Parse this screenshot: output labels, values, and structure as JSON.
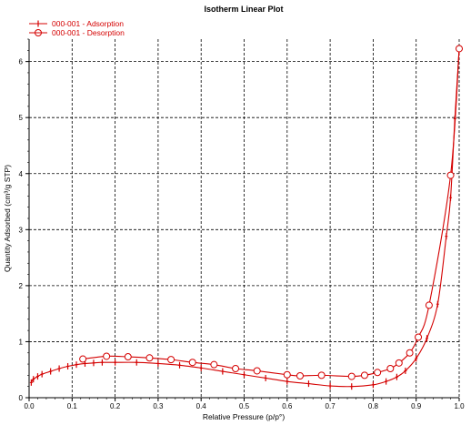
{
  "chart_data": {
    "type": "line",
    "title": "Isotherm Linear Plot",
    "xlabel": "Relative Pressure (p/p°)",
    "ylabel": "Quantity Adsorbed (cm³/g STP)",
    "xlim": [
      0,
      1.0
    ],
    "ylim": [
      0,
      6.4
    ],
    "x_ticks": [
      0.0,
      0.1,
      0.2,
      0.3,
      0.4,
      0.5,
      0.6,
      0.7,
      0.8,
      0.9,
      1.0
    ],
    "x_tick_labels": [
      "0.0",
      "0.1",
      "0.2",
      "0.3",
      "0.4",
      "0.5",
      "0.6",
      "0.7",
      "0.8",
      "0.9",
      "1.0"
    ],
    "y_ticks": [
      0,
      1,
      2,
      3,
      4,
      5,
      6
    ],
    "y_tick_labels": [
      "0",
      "1",
      "2",
      "3",
      "4",
      "5",
      "6"
    ],
    "grid": true,
    "legend_position": "top-left",
    "color": "#d40000",
    "series": [
      {
        "name": "000-001 - Adsorption",
        "marker": "plus",
        "x": [
          0.005,
          0.01,
          0.02,
          0.03,
          0.05,
          0.07,
          0.09,
          0.11,
          0.13,
          0.15,
          0.17,
          0.2,
          0.25,
          0.3,
          0.35,
          0.4,
          0.45,
          0.5,
          0.55,
          0.6,
          0.65,
          0.7,
          0.75,
          0.8,
          0.83,
          0.855,
          0.875,
          0.9,
          0.925,
          0.95,
          0.97,
          0.98,
          0.99,
          1.0
        ],
        "y": [
          0.27,
          0.33,
          0.38,
          0.42,
          0.47,
          0.52,
          0.56,
          0.59,
          0.61,
          0.62,
          0.63,
          0.63,
          0.63,
          0.61,
          0.58,
          0.53,
          0.47,
          0.41,
          0.35,
          0.29,
          0.25,
          0.21,
          0.2,
          0.23,
          0.29,
          0.37,
          0.48,
          0.7,
          1.06,
          1.67,
          2.88,
          3.57,
          4.98,
          6.22
        ]
      },
      {
        "name": "000-001 - Desorption",
        "marker": "circle",
        "x": [
          1.0,
          0.98,
          0.93,
          0.905,
          0.885,
          0.86,
          0.84,
          0.81,
          0.78,
          0.75,
          0.68,
          0.63,
          0.6,
          0.53,
          0.48,
          0.43,
          0.38,
          0.33,
          0.28,
          0.23,
          0.18,
          0.125
        ],
        "y": [
          6.23,
          3.97,
          1.65,
          1.08,
          0.8,
          0.62,
          0.52,
          0.45,
          0.4,
          0.38,
          0.4,
          0.39,
          0.41,
          0.48,
          0.52,
          0.59,
          0.63,
          0.68,
          0.71,
          0.73,
          0.74,
          0.69
        ]
      }
    ]
  }
}
